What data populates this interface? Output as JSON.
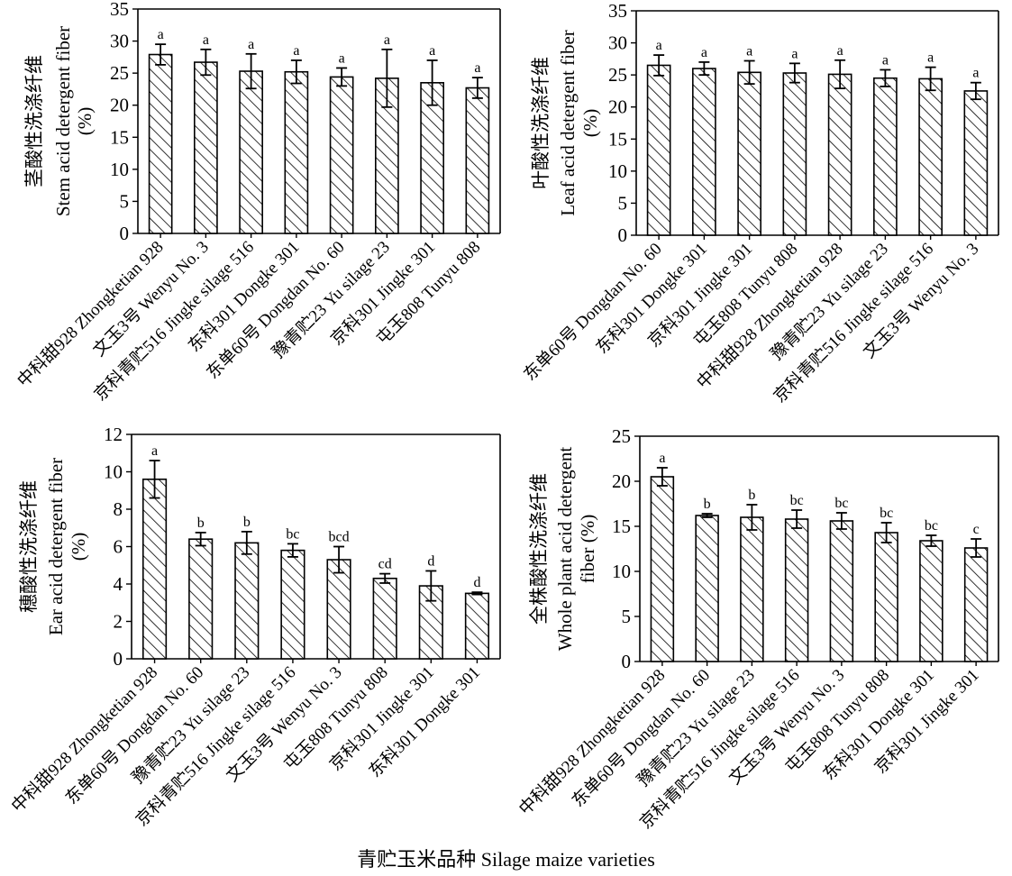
{
  "figure": {
    "shared_xlabel": "青贮玉米品种 Silage maize varieties",
    "bar_fill_color": "#ffffff",
    "bar_hatch_color": "#000000"
  },
  "chart_data": [
    {
      "type": "bar",
      "ylabel": [
        "茎酸性洗涤纤维",
        "Stem acid detergent fiber",
        "(%)"
      ],
      "ylim": [
        0,
        35
      ],
      "yticks": [
        0,
        5,
        10,
        15,
        20,
        25,
        30,
        35
      ],
      "categories": [
        "中科甜928 Zhongketian 928",
        "文玉3号 Wenyu No. 3",
        "京科青贮516 Jingke silage 516",
        "东科301 Dongke 301",
        "东单60号 Dongdan No. 60",
        "豫青贮23 Yu silage 23",
        "京科301 Jingke 301",
        "屯玉808 Tunyu 808"
      ],
      "values": [
        27.9,
        26.7,
        25.3,
        25.2,
        24.4,
        24.2,
        23.5,
        22.7
      ],
      "errors": [
        1.6,
        2.0,
        2.7,
        1.8,
        1.4,
        4.5,
        3.5,
        1.6
      ],
      "letters": [
        "a",
        "a",
        "a",
        "a",
        "a",
        "a",
        "a",
        "a"
      ]
    },
    {
      "type": "bar",
      "ylabel": [
        "叶酸性洗涤纤维",
        "Leaf acid detergent fiber",
        "(%)"
      ],
      "ylim": [
        0,
        35
      ],
      "yticks": [
        0,
        5,
        10,
        15,
        20,
        25,
        30,
        35
      ],
      "categories": [
        "东单60号 Dongdan No. 60",
        "东科301 Dongke 301",
        "京科301 Jingke 301",
        "屯玉808 Tunyu 808",
        "中科甜928 Zhongketian 928",
        "豫青贮23 Yu silage 23",
        "京科青贮516 Jingke silage 516",
        "文玉3号 Wenyu No. 3"
      ],
      "values": [
        26.5,
        26.0,
        25.4,
        25.3,
        25.1,
        24.5,
        24.4,
        22.5
      ],
      "errors": [
        1.6,
        1.0,
        1.8,
        1.5,
        2.2,
        1.3,
        1.8,
        1.3
      ],
      "letters": [
        "a",
        "a",
        "a",
        "a",
        "a",
        "a",
        "a",
        "a"
      ]
    },
    {
      "type": "bar",
      "ylabel": [
        "穗酸性洗涤纤维",
        "Ear acid detergent fiber",
        "(%)"
      ],
      "ylim": [
        0,
        12
      ],
      "yticks": [
        0,
        2,
        4,
        6,
        8,
        10,
        12
      ],
      "categories": [
        "中科甜928 Zhongketian 928",
        "东单60号 Dongdan No. 60",
        "豫青贮23 Yu silage 23",
        "京科青贮516 Jingke silage 516",
        "文玉3号 Wenyu No. 3",
        "屯玉808 Tunyu 808",
        "京科301 Jingke 301",
        "东科301 Dongke 301"
      ],
      "values": [
        9.6,
        6.4,
        6.2,
        5.8,
        5.3,
        4.3,
        3.9,
        3.5
      ],
      "errors": [
        1.0,
        0.35,
        0.6,
        0.35,
        0.7,
        0.25,
        0.8,
        0.06
      ],
      "letters": [
        "a",
        "b",
        "b",
        "bc",
        "bcd",
        "cd",
        "d",
        "d"
      ]
    },
    {
      "type": "bar",
      "ylabel": [
        "全株酸性洗涤纤维",
        "Whole plant acid detergent",
        "fiber (%)"
      ],
      "ylim": [
        0,
        25
      ],
      "yticks": [
        0,
        5,
        10,
        15,
        20,
        25
      ],
      "categories": [
        "中科甜928 Zhongketian 928",
        "东单60号 Dongdan No. 60",
        "豫青贮23 Yu silage 23",
        "京科青贮516 Jingke silage 516",
        "文玉3号 Wenyu No. 3",
        "屯玉808 Tunyu 808",
        "东科301 Dongke 301",
        "京科301 Jingke 301"
      ],
      "values": [
        20.5,
        16.2,
        16.0,
        15.8,
        15.6,
        14.3,
        13.4,
        12.6
      ],
      "errors": [
        1.0,
        0.2,
        1.4,
        1.0,
        0.9,
        1.1,
        0.6,
        1.0
      ],
      "letters": [
        "a",
        "b",
        "b",
        "bc",
        "bc",
        "bc",
        "bc",
        "c"
      ]
    }
  ]
}
